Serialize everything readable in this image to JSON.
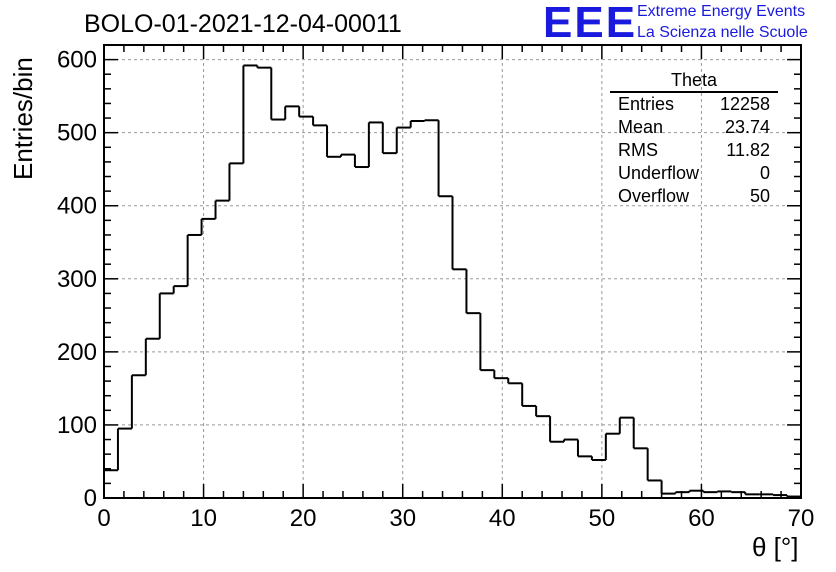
{
  "chart_data": {
    "type": "histogram",
    "title": "BOLO-01-2021-12-04-00011",
    "xlabel": "θ [°]",
    "ylabel": "Entries/bin",
    "xlim": [
      0,
      70
    ],
    "ylim": [
      0,
      620
    ],
    "grid": true,
    "bin_width": 1.4,
    "x_ticks": [
      0,
      10,
      20,
      30,
      40,
      50,
      60,
      70
    ],
    "y_ticks": [
      0,
      100,
      200,
      300,
      400,
      500,
      600
    ],
    "values": [
      38,
      95,
      168,
      218,
      280,
      290,
      360,
      382,
      407,
      458,
      592,
      589,
      518,
      536,
      522,
      510,
      467,
      470,
      453,
      514,
      472,
      507,
      516,
      517,
      413,
      313,
      253,
      175,
      164,
      157,
      126,
      112,
      77,
      80,
      57,
      52,
      88,
      110,
      68,
      24,
      6,
      8,
      10,
      8,
      9,
      8,
      5,
      5,
      4,
      2
    ],
    "stats": {
      "name": "Theta",
      "rows": [
        {
          "label": "Entries",
          "value": "12258"
        },
        {
          "label": "Mean",
          "value": "23.74"
        },
        {
          "label": "RMS",
          "value": "11.82"
        },
        {
          "label": "Underflow",
          "value": "0"
        },
        {
          "label": "Overflow",
          "value": "50"
        }
      ]
    }
  },
  "logo": {
    "mark": "EEE",
    "line1": "Extreme Energy Events",
    "line2": "La Scienza nelle Scuole",
    "color": "#1a1adf"
  }
}
